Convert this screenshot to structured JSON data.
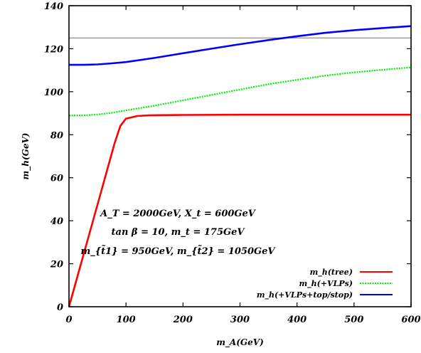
{
  "chart_data": {
    "type": "line",
    "xlabel": "m_A(GeV)",
    "ylabel": "m_h(GeV)",
    "xlim": [
      0,
      600
    ],
    "ylim": [
      0,
      140
    ],
    "xticks": [
      0,
      100,
      200,
      300,
      400,
      500,
      600
    ],
    "yticks": [
      0,
      20,
      40,
      60,
      80,
      100,
      120,
      140
    ],
    "xtick_labels": [
      "0",
      "100",
      "200",
      "300",
      "400",
      "500",
      "600"
    ],
    "ytick_labels": [
      "0",
      "20",
      "40",
      "60",
      "80",
      "100",
      "120",
      "140"
    ],
    "grid": false,
    "legend_position": "bottom-right",
    "reference_line": {
      "y": 125,
      "color": "#808080"
    },
    "series": [
      {
        "name": "m_h(tree)",
        "color": "#ff0000",
        "style": "solid",
        "x": [
          0,
          20,
          40,
          60,
          80,
          90,
          100,
          120,
          140,
          160,
          200,
          300,
          400,
          500,
          600
        ],
        "y": [
          0,
          19,
          38,
          57,
          76,
          84,
          87.5,
          88.7,
          89.0,
          89.1,
          89.2,
          89.3,
          89.3,
          89.3,
          89.3
        ]
      },
      {
        "name": "m_h(+VLPs)",
        "color": "#00ee00",
        "style": "dotted",
        "x": [
          0,
          25,
          50,
          75,
          100,
          150,
          200,
          250,
          300,
          350,
          400,
          450,
          500,
          550,
          600
        ],
        "y": [
          89,
          89,
          89.4,
          90.2,
          91.3,
          93.5,
          96,
          98.5,
          101,
          103.5,
          105.5,
          107.5,
          109,
          110.2,
          111.3
        ]
      },
      {
        "name": "m_h(+VLPs+top/stop)",
        "color": "#0000ff",
        "style": "solid",
        "x": [
          0,
          25,
          50,
          75,
          100,
          150,
          200,
          250,
          300,
          350,
          400,
          450,
          500,
          550,
          600
        ],
        "y": [
          112.5,
          112.5,
          112.7,
          113.2,
          113.8,
          115.7,
          117.9,
          120,
          122.1,
          124,
          125.8,
          127.4,
          128.6,
          129.6,
          130.5
        ]
      }
    ],
    "annotations": [
      "A_T = 2000GeV, X_t = 600GeV",
      "tan β = 10, m_t = 175GeV",
      "m_{t̃1} = 950GeV, m_{t̃2} = 1050GeV"
    ]
  }
}
